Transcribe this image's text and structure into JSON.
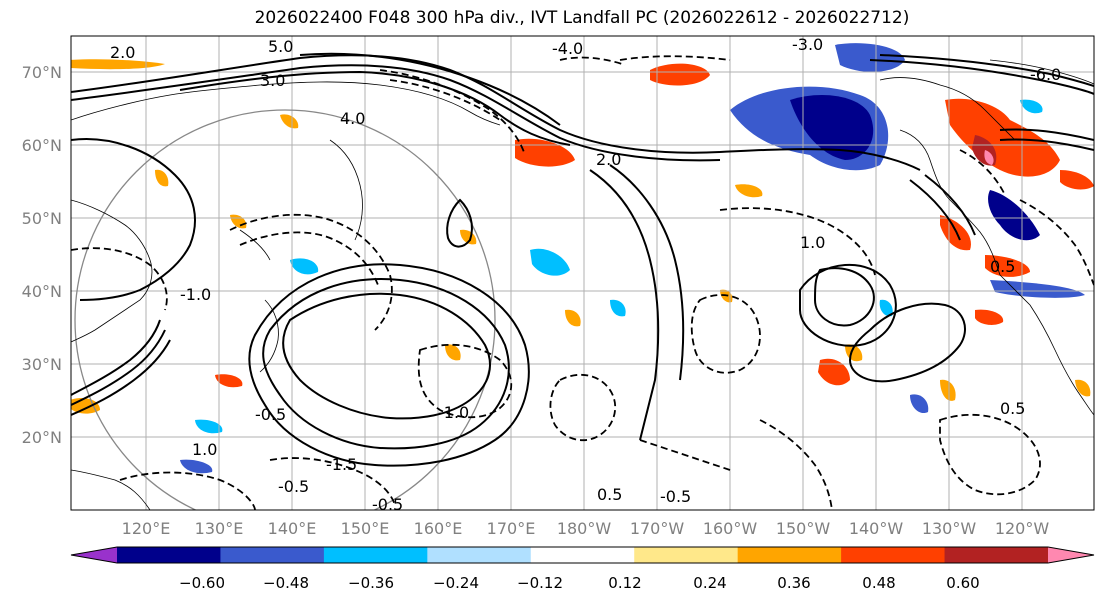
{
  "title": "2026022400 F048 300 hPa div., IVT Landfall PC (2026022612 - 2026022712)",
  "map": {
    "latitude_ticks": [
      "70°N",
      "60°N",
      "50°N",
      "40°N",
      "30°N",
      "20°N"
    ],
    "longitude_ticks": [
      "120°E",
      "130°E",
      "140°E",
      "150°E",
      "160°E",
      "170°E",
      "180°W",
      "170°W",
      "160°W",
      "150°W",
      "140°W",
      "130°W",
      "120°W"
    ],
    "contour_labels": [
      "2.0",
      "3.0",
      "4.0",
      "5.0",
      "1.0",
      "0.5",
      "-0.5",
      "-1.0",
      "-1.5",
      "-3.0",
      "-4.0",
      "-6.0",
      "0.5",
      "-0.5",
      "2.0",
      "1.0",
      "-1.0",
      "-0.5",
      "-0.5",
      "0.5"
    ]
  },
  "colorbar": {
    "tick_labels": [
      "−0.60",
      "−0.48",
      "−0.36",
      "−0.24",
      "−0.12",
      "0.12",
      "0.24",
      "0.36",
      "0.48",
      "0.60"
    ],
    "colors": [
      "#9932cc",
      "#00008b",
      "#3a5acd",
      "#00bfff",
      "#b0e0ff",
      "#ffffff",
      "#ffe88a",
      "#ffa500",
      "#ff4000",
      "#b22222",
      "#ff88b0"
    ]
  }
}
